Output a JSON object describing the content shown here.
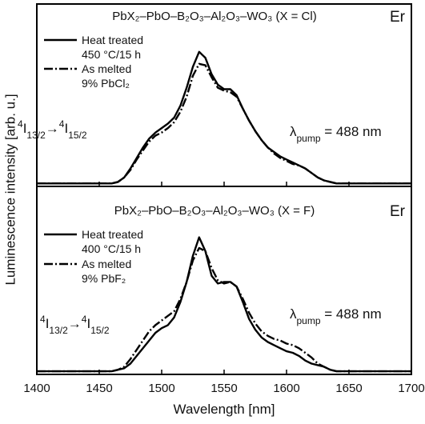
{
  "ylabel": "Luminescence intensity [arb. u.]",
  "chart_data": [
    {
      "type": "line",
      "title": "PbX₂–PbO–B₂O₃–Al₂O₃–WO₃ (X = Cl)",
      "element": "Er",
      "transition": [
        {
          "t": "4",
          "s": "sup"
        },
        {
          "t": "I"
        },
        {
          "t": "13/2",
          "s": "sub"
        },
        {
          "t": "→"
        },
        {
          "t": "4",
          "s": "sup"
        },
        {
          "t": "I"
        },
        {
          "t": "15/2",
          "s": "sub"
        }
      ],
      "pump": [
        {
          "t": "λ"
        },
        {
          "t": "pump",
          "s": "sub"
        },
        {
          "t": " = 488 nm"
        }
      ],
      "xlim": [
        1400,
        1700
      ],
      "ylim": [
        -0.02,
        1.2
      ],
      "x": [
        1400,
        1450,
        1455,
        1460,
        1465,
        1470,
        1475,
        1480,
        1485,
        1490,
        1495,
        1500,
        1505,
        1510,
        1515,
        1520,
        1525,
        1530,
        1535,
        1540,
        1545,
        1550,
        1555,
        1560,
        1565,
        1570,
        1575,
        1580,
        1585,
        1590,
        1595,
        1600,
        1605,
        1610,
        1615,
        1620,
        1625,
        1630,
        1635,
        1640,
        1645,
        1650,
        1700
      ],
      "series": [
        {
          "name": "Heat treated\n450 °C/15 h",
          "color": "#000000",
          "dash": "solid",
          "values": [
            0,
            0,
            0,
            0,
            0.01,
            0.04,
            0.1,
            0.17,
            0.24,
            0.3,
            0.34,
            0.37,
            0.4,
            0.44,
            0.52,
            0.64,
            0.78,
            0.88,
            0.84,
            0.73,
            0.66,
            0.63,
            0.63,
            0.59,
            0.5,
            0.42,
            0.35,
            0.29,
            0.24,
            0.21,
            0.18,
            0.16,
            0.14,
            0.12,
            0.1,
            0.07,
            0.04,
            0.02,
            0.01,
            0,
            0,
            0,
            0
          ]
        },
        {
          "name": "As melted\n9% PbCl₂",
          "color": "#000000",
          "dash": "dashdot",
          "values": [
            0,
            0,
            0,
            0,
            0.01,
            0.04,
            0.09,
            0.16,
            0.22,
            0.28,
            0.32,
            0.34,
            0.37,
            0.41,
            0.48,
            0.58,
            0.72,
            0.8,
            0.79,
            0.71,
            0.64,
            0.62,
            0.61,
            0.58,
            0.5,
            0.42,
            0.35,
            0.29,
            0.24,
            0.2,
            0.17,
            0.15,
            0.13,
            0.12,
            0.1,
            0.07,
            0.04,
            0.02,
            0.01,
            0,
            0,
            0,
            0
          ]
        }
      ]
    },
    {
      "type": "line",
      "title": "PbX₂–PbO–B₂O₃–Al₂O₃–WO₃ (X = F)",
      "element": "Er",
      "transition": [
        {
          "t": "4",
          "s": "sup"
        },
        {
          "t": "I"
        },
        {
          "t": "13/2",
          "s": "sub"
        },
        {
          "t": "→"
        },
        {
          "t": "4",
          "s": "sup"
        },
        {
          "t": "I"
        },
        {
          "t": "15/2",
          "s": "sub"
        }
      ],
      "pump": [
        {
          "t": "λ"
        },
        {
          "t": "pump",
          "s": "sub"
        },
        {
          "t": " = 488 nm"
        }
      ],
      "xlabel": "Wavelength [nm]",
      "xlim": [
        1400,
        1700
      ],
      "xticks": [
        1400,
        1450,
        1500,
        1550,
        1600,
        1650,
        1700
      ],
      "ylim": [
        -0.02,
        1.2
      ],
      "x": [
        1400,
        1450,
        1455,
        1460,
        1465,
        1470,
        1475,
        1480,
        1485,
        1490,
        1495,
        1500,
        1505,
        1510,
        1515,
        1520,
        1525,
        1530,
        1535,
        1540,
        1545,
        1550,
        1555,
        1560,
        1565,
        1570,
        1575,
        1580,
        1585,
        1590,
        1595,
        1600,
        1605,
        1610,
        1615,
        1620,
        1625,
        1630,
        1635,
        1640,
        1645,
        1650,
        1700
      ],
      "series": [
        {
          "name": "Heat treated\n400 °C/15 h",
          "color": "#000000",
          "dash": "solid",
          "values": [
            0,
            0,
            0,
            0,
            0.01,
            0.02,
            0.05,
            0.1,
            0.15,
            0.2,
            0.25,
            0.28,
            0.3,
            0.35,
            0.45,
            0.58,
            0.75,
            0.87,
            0.78,
            0.62,
            0.57,
            0.58,
            0.58,
            0.55,
            0.45,
            0.34,
            0.27,
            0.22,
            0.19,
            0.17,
            0.15,
            0.13,
            0.12,
            0.1,
            0.07,
            0.05,
            0.04,
            0.03,
            0.01,
            0,
            0,
            0,
            0
          ]
        },
        {
          "name": "As melted\n9% PbF₂",
          "color": "#000000",
          "dash": "dashdot",
          "values": [
            0,
            0,
            0,
            0,
            0.01,
            0.03,
            0.08,
            0.14,
            0.2,
            0.26,
            0.3,
            0.33,
            0.36,
            0.39,
            0.47,
            0.58,
            0.72,
            0.8,
            0.78,
            0.67,
            0.59,
            0.57,
            0.58,
            0.55,
            0.47,
            0.38,
            0.31,
            0.26,
            0.23,
            0.21,
            0.2,
            0.18,
            0.17,
            0.15,
            0.12,
            0.09,
            0.05,
            0.03,
            0.01,
            0,
            0,
            0,
            0
          ]
        }
      ]
    }
  ]
}
